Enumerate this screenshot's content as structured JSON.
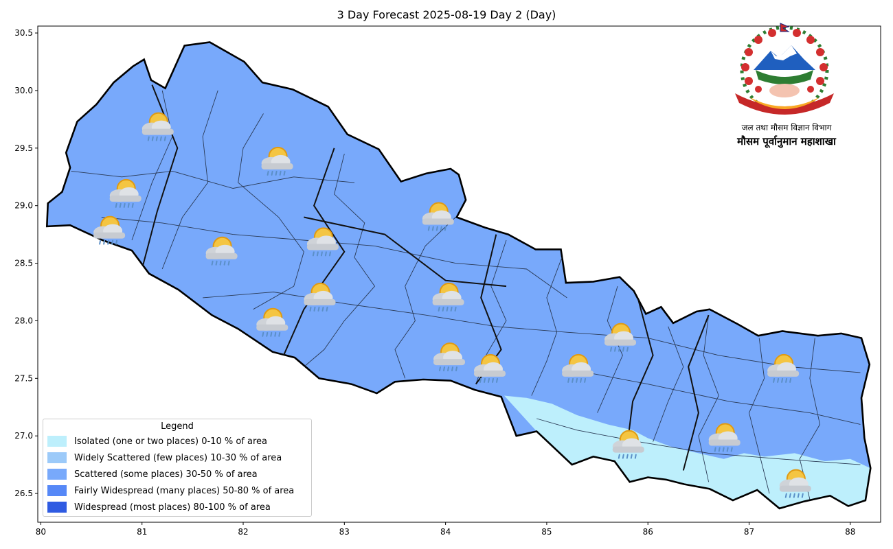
{
  "title": "3 Day Forecast 2025-08-19 Day 2 (Day)",
  "axes": {
    "x_ticks": [
      "80",
      "81",
      "82",
      "83",
      "84",
      "85",
      "86",
      "87",
      "88"
    ],
    "y_ticks": [
      "30.5",
      "30.0",
      "29.5",
      "29.0",
      "28.5",
      "28.0",
      "27.5",
      "27.0",
      "26.5"
    ],
    "x_range": [
      79.97,
      88.3
    ],
    "y_range": [
      26.25,
      30.56
    ],
    "grid": false
  },
  "legend": {
    "title": "Legend",
    "placement": "lower-left",
    "items": [
      {
        "label": "Isolated (one or two places)  0-10 % of area",
        "color": "#bdeffc"
      },
      {
        "label": "Widely Scattered (few places) 10-30 % of area",
        "color": "#9ccaf9"
      },
      {
        "label": "Scattered (some places) 30-50  % of area",
        "color": "#78a9fb"
      },
      {
        "label": "Fairly Widespread (many places) 50-80 % of area",
        "color": "#5688f7"
      },
      {
        "label": "Widespread (most places) 80-100 % of area",
        "color": "#2f5be2"
      }
    ]
  },
  "emblem": {
    "department": "जल तथा मौसम विज्ञान विभाग",
    "section": "मौसम पूर्वानुमान महाशाखा",
    "ribbon_text": "जननी जन्मभूमिश्च स्वर्गादपि गरीयसी"
  },
  "map": {
    "country_fill": "#78a9fb",
    "isolated_fill": "#bdeffc",
    "outline": [
      [
        80.06,
        28.82
      ],
      [
        80.07,
        29.02
      ],
      [
        80.21,
        29.12
      ],
      [
        80.29,
        29.33
      ],
      [
        80.25,
        29.46
      ],
      [
        80.36,
        29.73
      ],
      [
        80.55,
        29.88
      ],
      [
        80.72,
        30.07
      ],
      [
        80.91,
        30.21
      ],
      [
        81.02,
        30.27
      ],
      [
        81.09,
        30.09
      ],
      [
        81.23,
        30.02
      ],
      [
        81.42,
        30.39
      ],
      [
        81.67,
        30.42
      ],
      [
        82.01,
        30.25
      ],
      [
        82.19,
        30.07
      ],
      [
        82.49,
        30.01
      ],
      [
        82.84,
        29.86
      ],
      [
        83.03,
        29.62
      ],
      [
        83.34,
        29.49
      ],
      [
        83.56,
        29.21
      ],
      [
        83.81,
        29.28
      ],
      [
        84.05,
        29.32
      ],
      [
        84.13,
        29.27
      ],
      [
        84.2,
        29.05
      ],
      [
        84.11,
        28.9
      ],
      [
        84.39,
        28.81
      ],
      [
        84.62,
        28.75
      ],
      [
        84.89,
        28.62
      ],
      [
        85.14,
        28.62
      ],
      [
        85.19,
        28.33
      ],
      [
        85.46,
        28.34
      ],
      [
        85.72,
        28.38
      ],
      [
        85.86,
        28.26
      ],
      [
        85.98,
        28.06
      ],
      [
        86.13,
        28.12
      ],
      [
        86.25,
        27.98
      ],
      [
        86.48,
        28.08
      ],
      [
        86.61,
        28.1
      ],
      [
        86.89,
        27.97
      ],
      [
        87.09,
        27.87
      ],
      [
        87.33,
        27.91
      ],
      [
        87.68,
        27.87
      ],
      [
        87.91,
        27.89
      ],
      [
        88.11,
        27.85
      ],
      [
        88.19,
        27.62
      ],
      [
        88.11,
        27.33
      ],
      [
        88.14,
        26.98
      ],
      [
        88.2,
        26.72
      ],
      [
        88.15,
        26.44
      ],
      [
        87.98,
        26.39
      ],
      [
        87.8,
        26.48
      ],
      [
        87.54,
        26.43
      ],
      [
        87.3,
        26.37
      ],
      [
        87.08,
        26.53
      ],
      [
        86.84,
        26.44
      ],
      [
        86.61,
        26.54
      ],
      [
        86.36,
        26.58
      ],
      [
        86.18,
        26.62
      ],
      [
        86.0,
        26.64
      ],
      [
        85.82,
        26.6
      ],
      [
        85.67,
        26.78
      ],
      [
        85.46,
        26.82
      ],
      [
        85.25,
        26.75
      ],
      [
        84.9,
        27.04
      ],
      [
        84.7,
        27.0
      ],
      [
        84.55,
        27.34
      ],
      [
        84.29,
        27.4
      ],
      [
        84.05,
        27.48
      ],
      [
        83.78,
        27.49
      ],
      [
        83.5,
        27.47
      ],
      [
        83.32,
        27.37
      ],
      [
        83.07,
        27.45
      ],
      [
        82.75,
        27.5
      ],
      [
        82.51,
        27.68
      ],
      [
        82.29,
        27.73
      ],
      [
        81.95,
        27.93
      ],
      [
        81.69,
        28.05
      ],
      [
        81.36,
        28.27
      ],
      [
        81.07,
        28.41
      ],
      [
        80.9,
        28.61
      ],
      [
        80.61,
        28.7
      ],
      [
        80.29,
        28.83
      ]
    ],
    "isolated_region": [
      [
        84.58,
        27.35
      ],
      [
        84.9,
        27.04
      ],
      [
        85.25,
        26.75
      ],
      [
        85.46,
        26.82
      ],
      [
        85.67,
        26.78
      ],
      [
        85.82,
        26.6
      ],
      [
        86.0,
        26.64
      ],
      [
        86.18,
        26.62
      ],
      [
        86.36,
        26.58
      ],
      [
        86.61,
        26.54
      ],
      [
        86.84,
        26.44
      ],
      [
        87.08,
        26.53
      ],
      [
        87.3,
        26.37
      ],
      [
        87.54,
        26.43
      ],
      [
        87.8,
        26.48
      ],
      [
        87.98,
        26.39
      ],
      [
        88.15,
        26.44
      ],
      [
        88.2,
        26.72
      ],
      [
        88.0,
        26.8
      ],
      [
        87.75,
        26.78
      ],
      [
        87.45,
        26.85
      ],
      [
        87.15,
        26.82
      ],
      [
        86.95,
        26.85
      ],
      [
        86.75,
        26.8
      ],
      [
        86.5,
        26.85
      ],
      [
        86.25,
        26.9
      ],
      [
        86.0,
        26.98
      ],
      [
        85.85,
        27.05
      ],
      [
        85.6,
        27.1
      ],
      [
        85.3,
        27.18
      ],
      [
        85.05,
        27.28
      ],
      [
        84.8,
        27.33
      ]
    ],
    "icons": [
      {
        "lon": 81.15,
        "lat": 29.68
      },
      {
        "lon": 82.33,
        "lat": 29.38
      },
      {
        "lon": 80.83,
        "lat": 29.1
      },
      {
        "lon": 80.67,
        "lat": 28.78
      },
      {
        "lon": 81.78,
        "lat": 28.6
      },
      {
        "lon": 82.78,
        "lat": 28.68
      },
      {
        "lon": 83.92,
        "lat": 28.9
      },
      {
        "lon": 82.75,
        "lat": 28.2
      },
      {
        "lon": 84.02,
        "lat": 28.2
      },
      {
        "lon": 82.28,
        "lat": 27.98
      },
      {
        "lon": 85.72,
        "lat": 27.85
      },
      {
        "lon": 84.03,
        "lat": 27.68
      },
      {
        "lon": 84.43,
        "lat": 27.58
      },
      {
        "lon": 85.3,
        "lat": 27.58
      },
      {
        "lon": 87.33,
        "lat": 27.58
      },
      {
        "lon": 86.75,
        "lat": 26.98
      },
      {
        "lon": 85.8,
        "lat": 26.92
      },
      {
        "lon": 87.45,
        "lat": 26.58
      }
    ]
  }
}
